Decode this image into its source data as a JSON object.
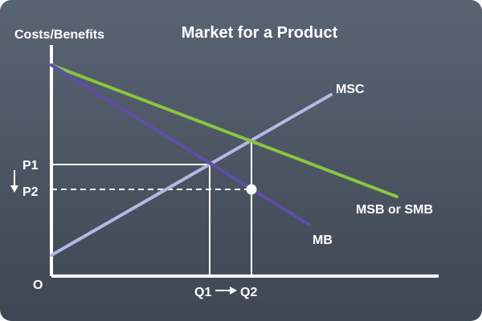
{
  "diagram": {
    "title": "Market for a Product",
    "y_axis_label": "Costs/Benefits",
    "origin_label": "O",
    "price_labels": {
      "p1": "P1",
      "p2": "P2"
    },
    "quantity_labels": {
      "q1": "Q1",
      "q2": "Q2"
    },
    "curves": {
      "msc": {
        "label": "MSC",
        "color": "#b7b7e3"
      },
      "msb": {
        "label": "MSB or SMB",
        "color": "#8bc53f"
      },
      "mb": {
        "label": "MB",
        "color": "#5d4ea6"
      }
    },
    "colors": {
      "background_top": "#596473",
      "background_bottom": "#3e4753",
      "axis": "#ffffff",
      "guide_lines": "#ffffff"
    },
    "icons": {
      "price_shift": "arrow-down-icon",
      "quantity_shift": "arrow-right-icon",
      "new_equilibrium": "equilibrium-dot"
    }
  }
}
